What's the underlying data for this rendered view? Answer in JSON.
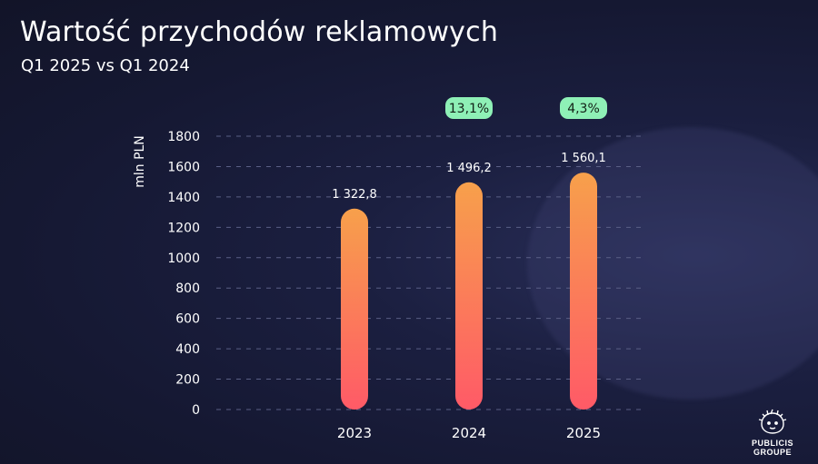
{
  "header": {
    "title": "Wartość przychodów reklamowych",
    "subtitle": "Q1 2025 vs Q1 2024"
  },
  "logo": {
    "line1": "PUBLICIS",
    "line2": "GROUPE"
  },
  "colors": {
    "bar_top": "#f7a04b",
    "bar_bottom": "#ff5a67",
    "badge_bg": "#8ef0b6",
    "badge_text": "#122016",
    "grid": "#5a5f85",
    "background": "#161a36"
  },
  "chart_data": {
    "type": "bar",
    "title": "Wartość przychodów reklamowych",
    "subtitle": "Q1 2025 vs Q1 2024",
    "ylabel": "mln PLN",
    "xlabel": "",
    "ylim": [
      0,
      1800
    ],
    "yticks": [
      "0",
      "200",
      "400",
      "600",
      "800",
      "1000",
      "1200",
      "1400",
      "1600",
      "1800"
    ],
    "grid": true,
    "categories": [
      "2023",
      "2024",
      "2025"
    ],
    "values": [
      1322.8,
      1496.2,
      1560.1
    ],
    "value_labels": [
      "1 322,8",
      "1 496,2",
      "1 560,1"
    ],
    "growth_labels": [
      "",
      "13,1%",
      "4,3%"
    ]
  }
}
